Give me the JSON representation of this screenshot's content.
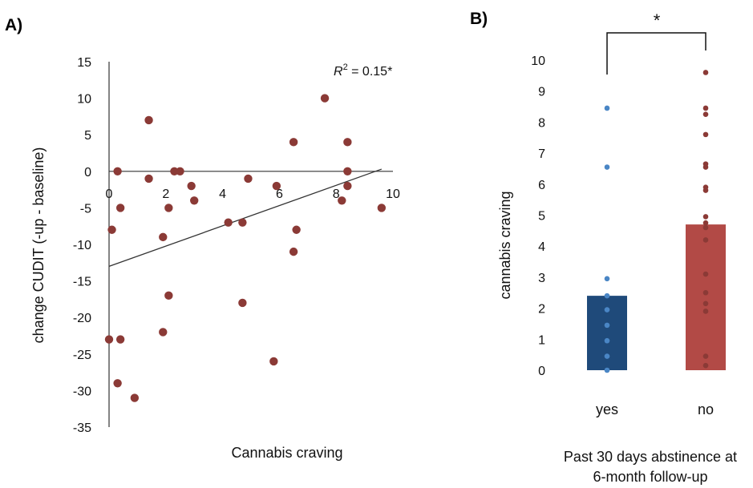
{
  "panels": {
    "a_label": "A)",
    "b_label": "B)"
  },
  "chart_data": [
    {
      "panel": "A)",
      "type": "scatter",
      "xlabel": "Cannabis craving",
      "ylabel": "change CUDIT (-up - baseline)",
      "xlim": [
        0,
        10
      ],
      "ylim": [
        -35,
        15
      ],
      "x_ticks": [
        0,
        2,
        4,
        6,
        8,
        10
      ],
      "y_ticks": [
        15,
        10,
        5,
        0,
        -5,
        -10,
        -15,
        -20,
        -25,
        -30,
        -35
      ],
      "annotation": {
        "r2_label": "R",
        "r2_sup": "2",
        "r2_value": " = 0.15*"
      },
      "marker_color": "#8B3A36",
      "regression_line": {
        "x": [
          0,
          9.6
        ],
        "y": [
          -13.0,
          0.3
        ]
      },
      "points": [
        {
          "x": 0.0,
          "y": -23
        },
        {
          "x": 0.1,
          "y": -8
        },
        {
          "x": 0.3,
          "y": 0
        },
        {
          "x": 0.3,
          "y": -29
        },
        {
          "x": 0.4,
          "y": -5
        },
        {
          "x": 0.4,
          "y": -23
        },
        {
          "x": 0.9,
          "y": -31
        },
        {
          "x": 1.4,
          "y": 7
        },
        {
          "x": 1.4,
          "y": -1
        },
        {
          "x": 1.9,
          "y": -9
        },
        {
          "x": 1.9,
          "y": -22
        },
        {
          "x": 2.1,
          "y": -5
        },
        {
          "x": 2.1,
          "y": -17
        },
        {
          "x": 2.3,
          "y": 0
        },
        {
          "x": 2.5,
          "y": 0
        },
        {
          "x": 2.9,
          "y": -2
        },
        {
          "x": 3.0,
          "y": -4
        },
        {
          "x": 4.2,
          "y": -7
        },
        {
          "x": 4.7,
          "y": -7
        },
        {
          "x": 4.7,
          "y": -18
        },
        {
          "x": 4.9,
          "y": -1
        },
        {
          "x": 5.8,
          "y": -26
        },
        {
          "x": 5.9,
          "y": -2
        },
        {
          "x": 6.5,
          "y": 4
        },
        {
          "x": 6.5,
          "y": -11
        },
        {
          "x": 6.6,
          "y": -8
        },
        {
          "x": 7.6,
          "y": 10
        },
        {
          "x": 8.2,
          "y": -4
        },
        {
          "x": 8.4,
          "y": 4
        },
        {
          "x": 8.4,
          "y": 0
        },
        {
          "x": 8.4,
          "y": -2
        },
        {
          "x": 9.6,
          "y": -5
        }
      ]
    },
    {
      "panel": "B)",
      "type": "bar",
      "categories": [
        "yes",
        "no"
      ],
      "values": [
        2.4,
        4.7
      ],
      "bar_colors": [
        "#1F4A7A",
        "#B24A46"
      ],
      "point_colors": [
        "#4A86C5",
        "#8B3A36"
      ],
      "ylabel": "cannabis craving",
      "xlabel_line1": "Past 30 days abstinence at",
      "xlabel_line2": "6-month follow-up",
      "ylim": [
        0,
        10
      ],
      "y_ticks": [
        0,
        1,
        2,
        3,
        4,
        5,
        6,
        7,
        8,
        9,
        10
      ],
      "significance": "*",
      "points": [
        [
          8.45,
          6.55,
          2.95,
          2.4,
          1.95,
          1.45,
          0.95,
          0.45,
          0.0
        ],
        [
          9.6,
          8.45,
          8.25,
          7.6,
          6.65,
          6.55,
          5.9,
          5.8,
          4.95,
          4.75,
          4.6,
          4.2,
          3.1,
          2.5,
          2.15,
          1.9,
          0.45,
          0.15
        ]
      ]
    }
  ]
}
